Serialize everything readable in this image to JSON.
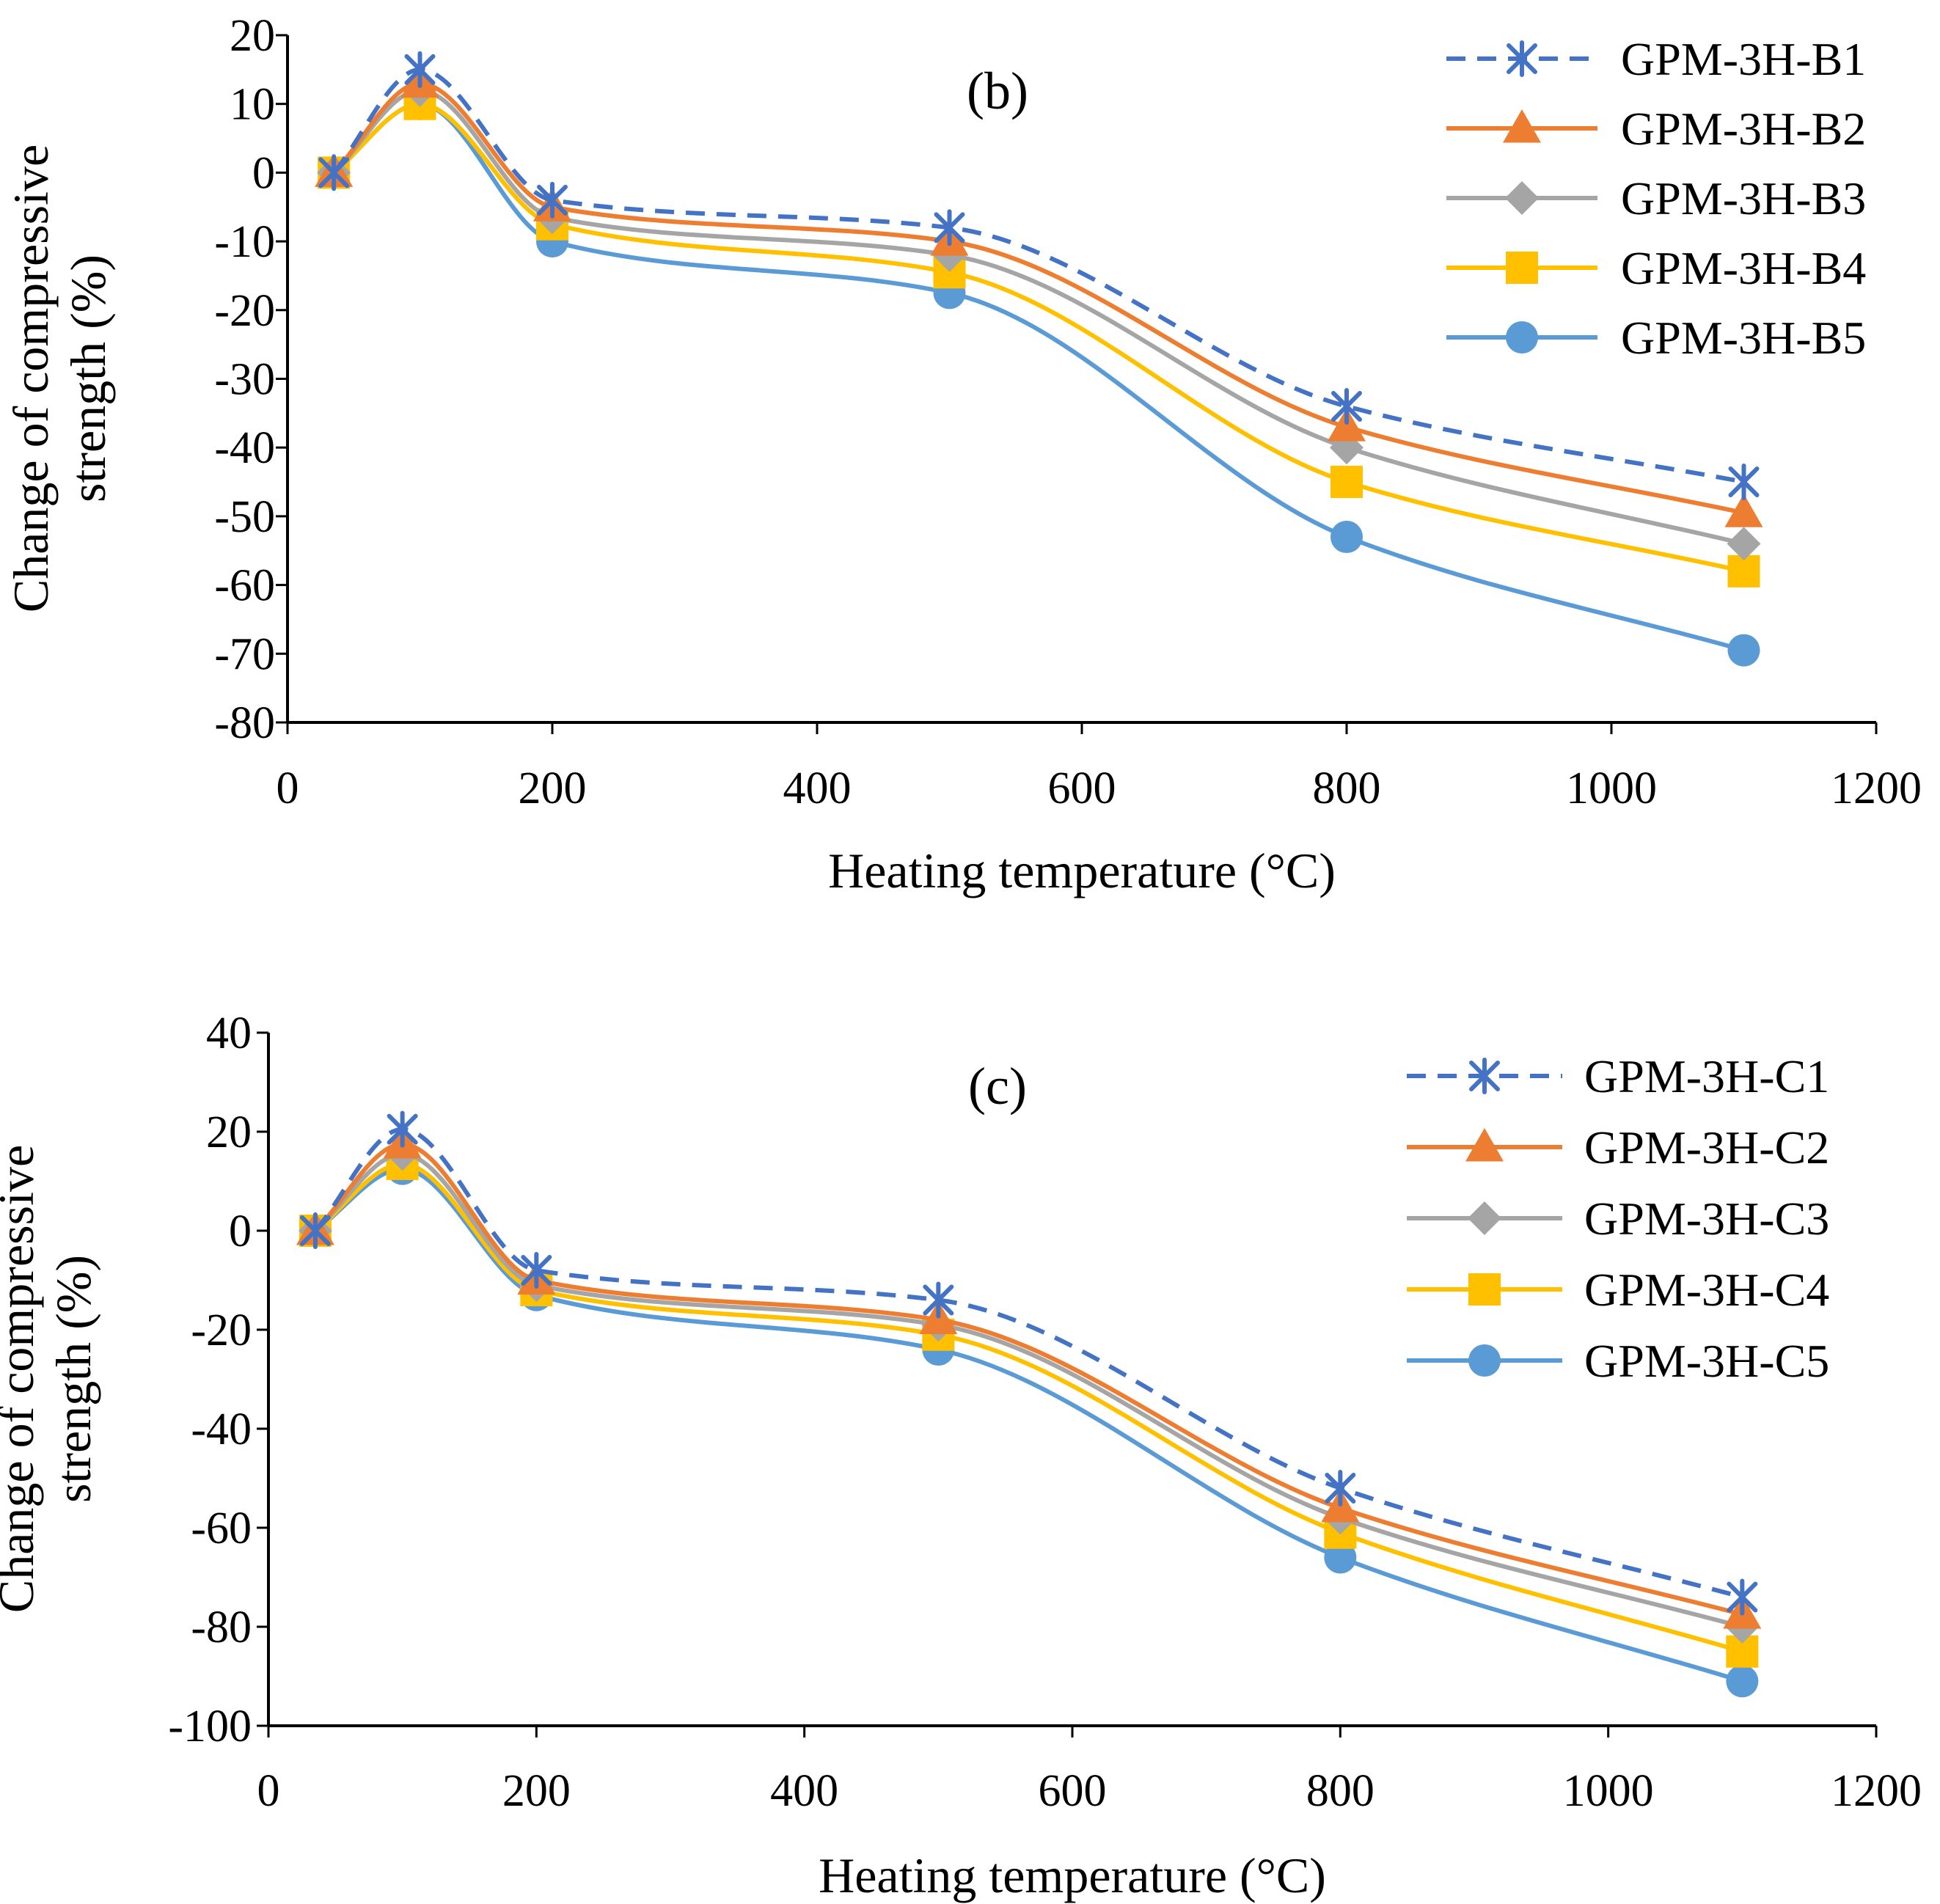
{
  "chart_data": [
    {
      "type": "line",
      "panel_label": "(b)",
      "xlabel": "Heating temperature (°C)",
      "ylabel": [
        "Change of compressive",
        "strength (%)"
      ],
      "xlim": [
        0,
        1200
      ],
      "ylim": [
        -80,
        20
      ],
      "x_ticks": [
        0,
        200,
        400,
        600,
        800,
        1000,
        1200
      ],
      "y_ticks": [
        20,
        10,
        0,
        -10,
        -20,
        -30,
        -40,
        -50,
        -60,
        -70,
        -80
      ],
      "grid": false,
      "legend_position": "top-right",
      "x": [
        35,
        100,
        200,
        500,
        800,
        1100
      ],
      "series": [
        {
          "name": "GPM-3H-B1",
          "values": [
            0,
            15,
            -4,
            -8,
            -34,
            -45
          ],
          "color": "#4472C4",
          "marker": "asterisk",
          "dashed": true
        },
        {
          "name": "GPM-3H-B2",
          "values": [
            0,
            13,
            -5,
            -10,
            -37,
            -49.5
          ],
          "color": "#ED7D31",
          "marker": "triangle",
          "dashed": false
        },
        {
          "name": "GPM-3H-B3",
          "values": [
            0,
            12,
            -6.5,
            -12,
            -40,
            -54
          ],
          "color": "#A5A5A5",
          "marker": "diamond",
          "dashed": false
        },
        {
          "name": "GPM-3H-B4",
          "values": [
            0,
            10,
            -7.5,
            -14.5,
            -45,
            -58
          ],
          "color": "#FFC000",
          "marker": "square",
          "dashed": false
        },
        {
          "name": "GPM-3H-B5",
          "values": [
            0,
            10,
            -10,
            -17.5,
            -53,
            -69.5
          ],
          "color": "#5B9BD5",
          "marker": "circle",
          "dashed": false
        }
      ]
    },
    {
      "type": "line",
      "panel_label": "(c)",
      "xlabel": "Heating temperature (°C)",
      "ylabel": [
        "Change of compressive",
        "strength (%)"
      ],
      "xlim": [
        0,
        1200
      ],
      "ylim": [
        -100,
        40
      ],
      "x_ticks": [
        0,
        200,
        400,
        600,
        800,
        1000,
        1200
      ],
      "y_ticks": [
        40,
        20,
        0,
        -20,
        -40,
        -60,
        -80,
        -100
      ],
      "grid": false,
      "legend_position": "top-right",
      "x": [
        35,
        100,
        200,
        500,
        800,
        1100
      ],
      "series": [
        {
          "name": "GPM-3H-C1",
          "values": [
            0,
            20.5,
            -8,
            -14,
            -52,
            -74
          ],
          "color": "#4472C4",
          "marker": "asterisk",
          "dashed": true
        },
        {
          "name": "GPM-3H-C2",
          "values": [
            0,
            17.5,
            -10,
            -18,
            -56,
            -77.5
          ],
          "color": "#ED7D31",
          "marker": "triangle",
          "dashed": false
        },
        {
          "name": "GPM-3H-C3",
          "values": [
            0,
            15.5,
            -11,
            -19,
            -58,
            -80
          ],
          "color": "#A5A5A5",
          "marker": "diamond",
          "dashed": false
        },
        {
          "name": "GPM-3H-C4",
          "values": [
            0,
            13.5,
            -12,
            -21,
            -61,
            -85
          ],
          "color": "#FFC000",
          "marker": "square",
          "dashed": false
        },
        {
          "name": "GPM-3H-C5",
          "values": [
            0,
            12.5,
            -13,
            -24,
            -66,
            -91
          ],
          "color": "#5B9BD5",
          "marker": "circle",
          "dashed": false
        }
      ]
    }
  ]
}
